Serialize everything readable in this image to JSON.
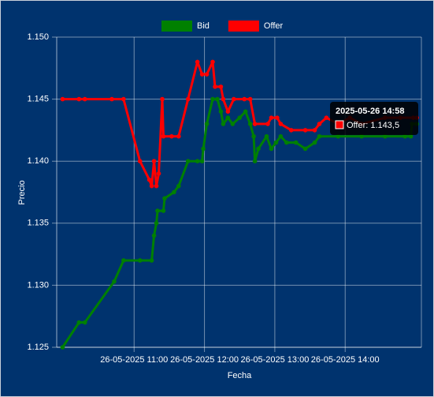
{
  "chart_data": {
    "type": "line",
    "x_label": "Fecha",
    "y_label": "Precio",
    "xlim": [
      "2025-05-26 09:54",
      "2025-05-26 15:05"
    ],
    "xticks": [
      {
        "value": "2025-05-26 11:00",
        "label": "26-05-2025 11:00"
      },
      {
        "value": "2025-05-26 12:00",
        "label": "26-05-2025 12:00"
      },
      {
        "value": "2025-05-26 13:00",
        "label": "26-05-2025 13:00"
      },
      {
        "value": "2025-05-26 14:00",
        "label": "26-05-2025 14:00"
      }
    ],
    "ylim": [
      1.125,
      1.15
    ],
    "yticks": [
      1.125,
      {
        "value": 1.13,
        "label": "1.130"
      },
      1.135,
      {
        "value": 1.14,
        "label": "1.140"
      },
      1.145,
      {
        "value": 1.15,
        "label": "1.150"
      }
    ],
    "grid": true,
    "legend": "top",
    "series": [
      {
        "name": "Bid",
        "color": "#008000",
        "x": [
          "2025-05-26 09:59",
          "2025-05-26 10:13",
          "2025-05-26 10:18",
          "2025-05-26 10:43",
          "2025-05-26 10:51",
          "2025-05-26 11:05",
          "2025-05-26 11:15",
          "2025-05-26 11:17",
          "2025-05-26 11:19",
          "2025-05-26 11:20",
          "2025-05-26 11:25",
          "2025-05-26 11:26",
          "2025-05-26 11:34",
          "2025-05-26 11:38",
          "2025-05-26 11:46",
          "2025-05-26 11:54",
          "2025-05-26 11:58",
          "2025-05-26 11:59",
          "2025-05-26 12:02",
          "2025-05-26 12:07",
          "2025-05-26 12:11",
          "2025-05-26 12:14",
          "2025-05-26 12:16",
          "2025-05-26 12:20",
          "2025-05-26 12:24",
          "2025-05-26 12:30",
          "2025-05-26 12:35",
          "2025-05-26 12:39",
          "2025-05-26 12:42",
          "2025-05-26 12:43",
          "2025-05-26 12:46",
          "2025-05-26 12:53",
          "2025-05-26 12:57",
          "2025-05-26 13:01",
          "2025-05-26 13:05",
          "2025-05-26 13:10",
          "2025-05-26 13:18",
          "2025-05-26 13:26",
          "2025-05-26 13:34",
          "2025-05-26 13:38",
          "2025-05-26 13:54",
          "2025-05-26 14:14",
          "2025-05-26 14:34",
          "2025-05-26 14:51",
          "2025-05-26 14:56",
          "2025-05-26 14:57",
          "2025-05-26 15:01"
        ],
        "values": [
          1.125,
          1.127,
          1.127,
          1.1303,
          1.132,
          1.132,
          1.132,
          1.134,
          1.135,
          1.136,
          1.136,
          1.137,
          1.1375,
          1.138,
          1.14,
          1.14,
          1.14,
          1.141,
          1.143,
          1.145,
          1.145,
          1.144,
          1.143,
          1.1435,
          1.143,
          1.1435,
          1.144,
          1.143,
          1.142,
          1.14,
          1.141,
          1.142,
          1.141,
          1.1415,
          1.142,
          1.1415,
          1.1415,
          1.141,
          1.1415,
          1.142,
          1.142,
          1.142,
          1.142,
          1.142,
          1.142,
          1.143,
          1.143
        ]
      },
      {
        "name": "Offer",
        "color": "#ff0000",
        "x": [
          "2025-05-26 09:59",
          "2025-05-26 10:13",
          "2025-05-26 10:18",
          "2025-05-26 10:41",
          "2025-05-26 10:51",
          "2025-05-26 11:05",
          "2025-05-26 11:13",
          "2025-05-26 11:15",
          "2025-05-26 11:17",
          "2025-05-26 11:19",
          "2025-05-26 11:21",
          "2025-05-26 11:24",
          "2025-05-26 11:25",
          "2025-05-26 11:32",
          "2025-05-26 11:38",
          "2025-05-26 11:46",
          "2025-05-26 11:54",
          "2025-05-26 11:58",
          "2025-05-26 12:02",
          "2025-05-26 12:07",
          "2025-05-26 12:09",
          "2025-05-26 12:14",
          "2025-05-26 12:16",
          "2025-05-26 12:20",
          "2025-05-26 12:25",
          "2025-05-26 12:34",
          "2025-05-26 12:39",
          "2025-05-26 12:43",
          "2025-05-26 12:54",
          "2025-05-26 12:57",
          "2025-05-26 13:02",
          "2025-05-26 13:05",
          "2025-05-26 13:14",
          "2025-05-26 13:26",
          "2025-05-26 13:34",
          "2025-05-26 13:38",
          "2025-05-26 13:44",
          "2025-05-26 13:54",
          "2025-05-26 14:04",
          "2025-05-26 14:14",
          "2025-05-26 14:34",
          "2025-05-26 14:47",
          "2025-05-26 14:58",
          "2025-05-26 15:01"
        ],
        "values": [
          1.145,
          1.145,
          1.145,
          1.145,
          1.145,
          1.14,
          1.1385,
          1.138,
          1.14,
          1.138,
          1.139,
          1.145,
          1.142,
          1.142,
          1.142,
          1.145,
          1.148,
          1.147,
          1.147,
          1.148,
          1.146,
          1.146,
          1.145,
          1.144,
          1.145,
          1.145,
          1.145,
          1.143,
          1.143,
          1.1435,
          1.1435,
          1.143,
          1.1425,
          1.1425,
          1.1425,
          1.143,
          1.1435,
          1.143,
          1.1435,
          1.143,
          1.1435,
          1.1435,
          1.1435,
          1.1435
        ]
      }
    ],
    "tooltip": {
      "title": "2025-05-26 14:58",
      "label": "Offer: 1.143,5"
    }
  }
}
